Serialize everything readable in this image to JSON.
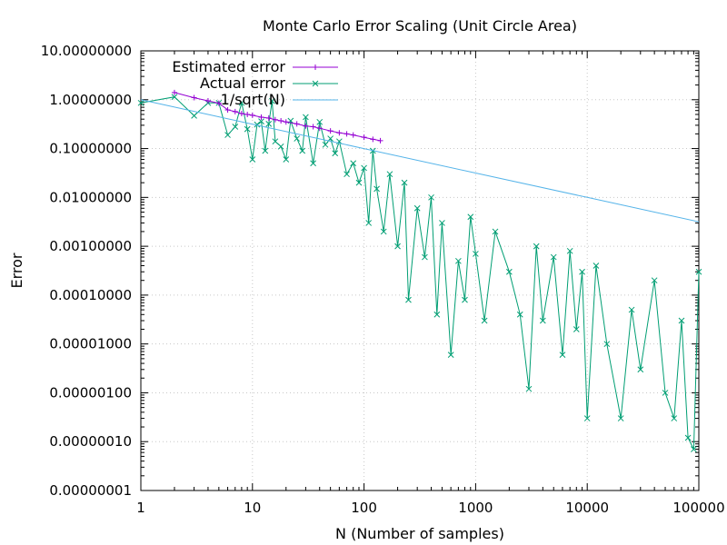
{
  "chart_data": {
    "type": "line",
    "title": "Monte Carlo Error Scaling (Unit Circle Area)",
    "xlabel": "N (Number of samples)",
    "ylabel": "Error",
    "x_scale": "log",
    "y_scale": "log",
    "xlim": [
      1,
      100000
    ],
    "ylim": [
      1e-08,
      10
    ],
    "x_tick_labels": [
      "1",
      "10",
      "100",
      "1000",
      "10000",
      "100000"
    ],
    "y_tick_labels": [
      "10.00000000",
      "1.00000000",
      "0.10000000",
      "0.01000000",
      "0.00100000",
      "0.00010000",
      "0.00001000",
      "0.00000100",
      "0.00000010",
      "0.00000001"
    ],
    "grid": true,
    "legend_position": "top-left",
    "series": [
      {
        "name": "Estimated error",
        "color": "#9400d3",
        "marker": "plus",
        "points": [
          [
            2,
            1.4
          ],
          [
            3,
            1.1
          ],
          [
            4,
            0.95
          ],
          [
            5,
            0.85
          ],
          [
            6,
            0.62
          ],
          [
            7,
            0.57
          ],
          [
            8,
            0.52
          ],
          [
            9,
            0.5
          ],
          [
            10,
            0.48
          ],
          [
            12,
            0.44
          ],
          [
            14,
            0.42
          ],
          [
            16,
            0.39
          ],
          [
            18,
            0.37
          ],
          [
            20,
            0.35
          ],
          [
            25,
            0.32
          ],
          [
            30,
            0.29
          ],
          [
            35,
            0.28
          ],
          [
            40,
            0.26
          ],
          [
            50,
            0.23
          ],
          [
            60,
            0.21
          ],
          [
            70,
            0.2
          ],
          [
            80,
            0.19
          ],
          [
            100,
            0.17
          ],
          [
            120,
            0.155
          ],
          [
            140,
            0.145
          ]
        ]
      },
      {
        "name": "Actual error",
        "color": "#009e73",
        "marker": "cross",
        "points": [
          [
            1,
            0.86
          ],
          [
            2,
            1.14
          ],
          [
            3,
            0.47
          ],
          [
            4,
            0.86
          ],
          [
            5,
            0.86
          ],
          [
            6,
            0.19
          ],
          [
            7,
            0.28
          ],
          [
            8,
            0.86
          ],
          [
            9,
            0.25
          ],
          [
            10,
            0.06
          ],
          [
            11,
            0.31
          ],
          [
            12,
            0.36
          ],
          [
            13,
            0.09
          ],
          [
            14,
            0.32
          ],
          [
            15,
            0.94
          ],
          [
            16,
            0.14
          ],
          [
            18,
            0.11
          ],
          [
            20,
            0.06
          ],
          [
            22,
            0.37
          ],
          [
            25,
            0.16
          ],
          [
            28,
            0.09
          ],
          [
            30,
            0.44
          ],
          [
            35,
            0.05
          ],
          [
            40,
            0.35
          ],
          [
            45,
            0.12
          ],
          [
            50,
            0.16
          ],
          [
            55,
            0.08
          ],
          [
            60,
            0.14
          ],
          [
            70,
            0.03
          ],
          [
            80,
            0.05
          ],
          [
            90,
            0.02
          ],
          [
            100,
            0.04
          ],
          [
            110,
            0.003
          ],
          [
            120,
            0.09
          ],
          [
            130,
            0.015
          ],
          [
            150,
            0.002
          ],
          [
            170,
            0.03
          ],
          [
            200,
            0.001
          ],
          [
            230,
            0.02
          ],
          [
            250,
            8e-05
          ],
          [
            300,
            0.006
          ],
          [
            350,
            0.0006
          ],
          [
            400,
            0.01
          ],
          [
            450,
            4e-05
          ],
          [
            500,
            0.003
          ],
          [
            600,
            6e-06
          ],
          [
            700,
            0.0005
          ],
          [
            800,
            8e-05
          ],
          [
            900,
            0.004
          ],
          [
            1000,
            0.0007
          ],
          [
            1200,
            3e-05
          ],
          [
            1500,
            0.002
          ],
          [
            2000,
            0.0003
          ],
          [
            2500,
            4e-05
          ],
          [
            3000,
            1.2e-06
          ],
          [
            3500,
            0.001
          ],
          [
            4000,
            3e-05
          ],
          [
            5000,
            0.0006
          ],
          [
            6000,
            6e-06
          ],
          [
            7000,
            0.0008
          ],
          [
            8000,
            2e-05
          ],
          [
            9000,
            0.0003
          ],
          [
            10000,
            3e-07
          ],
          [
            12000,
            0.0004
          ],
          [
            15000,
            1e-05
          ],
          [
            20000,
            3e-07
          ],
          [
            25000,
            5e-05
          ],
          [
            30000,
            3e-06
          ],
          [
            40000,
            0.0002
          ],
          [
            50000,
            1e-06
          ],
          [
            60000,
            3e-07
          ],
          [
            70000,
            3e-05
          ],
          [
            80000,
            1.2e-07
          ],
          [
            90000,
            7e-08
          ],
          [
            100000,
            0.0003
          ]
        ]
      },
      {
        "name": "1/sqrt(N)",
        "color": "#56b4e9",
        "marker": "none",
        "points": [
          [
            1,
            1.0
          ],
          [
            10,
            0.316
          ],
          [
            100,
            0.1
          ],
          [
            1000,
            0.0316
          ],
          [
            10000,
            0.01
          ],
          [
            100000,
            0.00316
          ]
        ]
      }
    ]
  }
}
